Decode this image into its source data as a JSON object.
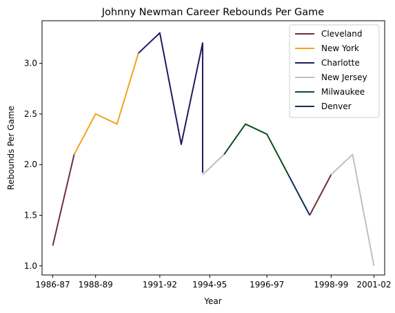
{
  "chart_data": {
    "type": "line",
    "title": "Johnny Newman Career Rebounds Per Game",
    "xlabel": "Year",
    "ylabel": "Rebounds Per Game",
    "x_ticks": [
      "1986-87",
      "1988-89",
      "1991-92",
      "1994-95",
      "1996-97",
      "1998-99",
      "2001-02"
    ],
    "x_tick_positions": [
      0,
      2,
      5,
      7.33,
      10,
      13,
      15
    ],
    "xlim": [
      -0.5,
      15.5
    ],
    "ylim": [
      0.91,
      3.42
    ],
    "y_ticks": [
      1.0,
      1.5,
      2.0,
      2.5,
      3.0
    ],
    "y_tick_labels": [
      "1.0",
      "1.5",
      "2.0",
      "2.5",
      "3.0"
    ],
    "grid": false,
    "legend_position": "top-right",
    "series": [
      {
        "name": "Cleveland",
        "color": "#6b2d3f",
        "points": [
          [
            0,
            1.2
          ],
          [
            1,
            2.1
          ]
        ]
      },
      {
        "name": "New York",
        "color": "#f5a11b",
        "points": [
          [
            1,
            2.1
          ],
          [
            2,
            2.5
          ],
          [
            3,
            2.4
          ],
          [
            4,
            3.1
          ]
        ]
      },
      {
        "name": "Charlotte",
        "color": "#21185e",
        "points": [
          [
            4,
            3.1
          ],
          [
            5,
            3.3
          ],
          [
            6,
            2.2
          ],
          [
            7,
            3.2
          ],
          [
            7,
            1.92
          ]
        ]
      },
      {
        "name": "New Jersey",
        "color": "#bfbfbf",
        "points": [
          [
            7,
            1.9
          ],
          [
            8,
            2.1
          ]
        ]
      },
      {
        "name": "Milwaukee",
        "color": "#0b4a1e",
        "points": [
          [
            8,
            2.1
          ],
          [
            9,
            2.4
          ],
          [
            10,
            2.3
          ],
          [
            11,
            1.9
          ]
        ]
      },
      {
        "name": "Denver",
        "color": "#0d2b56",
        "points": [
          [
            11,
            1.9
          ],
          [
            12,
            1.5
          ]
        ]
      },
      {
        "name": "Cleveland",
        "color": "#6b2d3f",
        "points": [
          [
            12,
            1.5
          ],
          [
            13,
            1.9
          ]
        ]
      },
      {
        "name": "New Jersey",
        "color": "#bfbfbf",
        "points": [
          [
            13,
            1.9
          ],
          [
            14,
            2.1
          ],
          [
            15,
            1.0
          ]
        ]
      }
    ],
    "legend": [
      {
        "name": "Cleveland",
        "color": "#6b2d3f"
      },
      {
        "name": "New York",
        "color": "#f5a11b"
      },
      {
        "name": "Charlotte",
        "color": "#21185e"
      },
      {
        "name": "New Jersey",
        "color": "#bfbfbf"
      },
      {
        "name": "Milwaukee",
        "color": "#0b4a1e"
      },
      {
        "name": "Denver",
        "color": "#0d2b56"
      }
    ]
  }
}
